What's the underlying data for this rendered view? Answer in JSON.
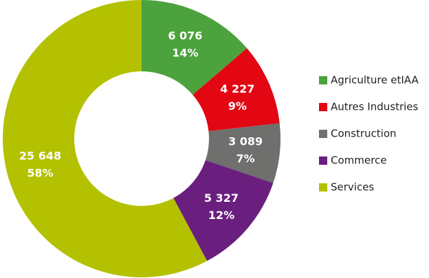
{
  "chart_data": {
    "type": "donut",
    "categories": [
      "Agriculture etIAA",
      "Autres Industries",
      "Construction",
      "Commerce",
      "Services"
    ],
    "values": [
      6076,
      4227,
      3089,
      5327,
      25648
    ],
    "value_labels": [
      "6 076",
      "4 227",
      "3 089",
      "5 327",
      "25 648"
    ],
    "percent_labels": [
      "14%",
      "9%",
      "7%",
      "12%",
      "58%"
    ],
    "colors": [
      "#4ca23c",
      "#e30613",
      "#6f6f6e",
      "#6a1f7f",
      "#b3c100"
    ],
    "legend": "right"
  }
}
